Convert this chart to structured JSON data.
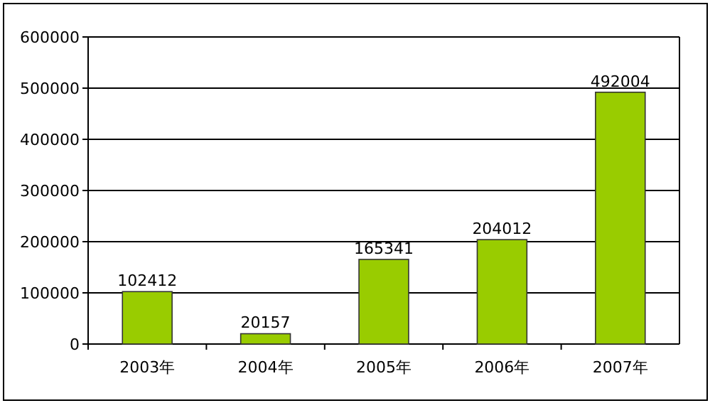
{
  "chart_data": {
    "type": "bar",
    "categories": [
      "2003年",
      "2004年",
      "2005年",
      "2006年",
      "2007年"
    ],
    "values": [
      102412,
      20157,
      165341,
      204012,
      492004
    ],
    "color": "#99cc00",
    "data_labels": true,
    "ylim": [
      0,
      600000
    ],
    "yticks": [
      0,
      100000,
      200000,
      300000,
      400000,
      500000,
      600000
    ],
    "grid": "y"
  }
}
